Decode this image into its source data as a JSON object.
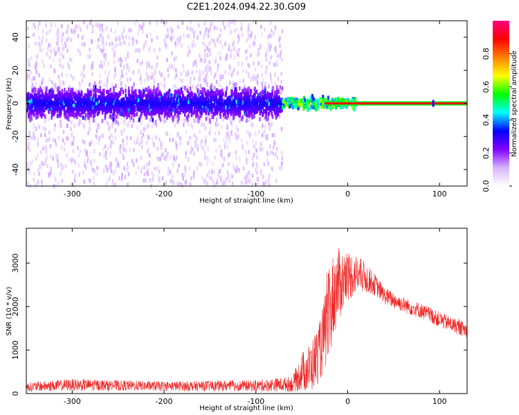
{
  "title": "C2E1.2024.094.22.30.G09",
  "chart_data": [
    {
      "type": "heatmap",
      "xlabel": "Height of straight line (km)",
      "ylabel": "Frequency (Hz)",
      "xlim": [
        -350,
        130
      ],
      "ylim": [
        -50,
        50
      ],
      "x_ticks": [
        -300,
        -200,
        -100,
        0,
        100
      ],
      "y_ticks": [
        -40,
        -20,
        0,
        20,
        40
      ],
      "colorbar": {
        "label": "Normalized spectral amplitude",
        "range": [
          0,
          1
        ],
        "ticks": [
          "0.0",
          "0.2",
          "0.4",
          "0.6",
          "0.8"
        ],
        "colormap": [
          "#ffffff",
          "#d9b3ff",
          "#8000ff",
          "#0000ff",
          "#00ffff",
          "#00ff00",
          "#ffff00",
          "#ff8000",
          "#ff0000",
          "#ff0080"
        ]
      },
      "features": {
        "noise_region_x": [
          -350,
          -72
        ],
        "band_center_freq": 0,
        "noise_band_halfwidth_hz": 8,
        "clean_signal_start_x": 8,
        "clean_signal_freq": 0
      }
    },
    {
      "type": "line",
      "xlabel": "Height of straight line (km)",
      "ylabel": "SNR (10 * v/v)",
      "xlim": [
        -350,
        130
      ],
      "ylim": [
        0,
        3800
      ],
      "x_ticks": [
        -300,
        -200,
        -100,
        0,
        100
      ],
      "y_ticks": [
        0,
        1000,
        2000,
        3000
      ],
      "series_color": "#ee2222",
      "envelope_x": [
        -350,
        -300,
        -200,
        -100,
        -60,
        -50,
        -40,
        -30,
        -20,
        -15,
        -10,
        0,
        10,
        20,
        30,
        40,
        60,
        80,
        100,
        130
      ],
      "envelope_mean": [
        150,
        200,
        170,
        180,
        220,
        500,
        600,
        1000,
        1800,
        2300,
        2500,
        2700,
        2750,
        2650,
        2500,
        2250,
        2050,
        1900,
        1700,
        1450
      ],
      "envelope_spread": [
        110,
        140,
        110,
        130,
        180,
        450,
        600,
        700,
        1100,
        1000,
        850,
        600,
        450,
        350,
        250,
        200,
        180,
        180,
        180,
        180
      ]
    }
  ]
}
